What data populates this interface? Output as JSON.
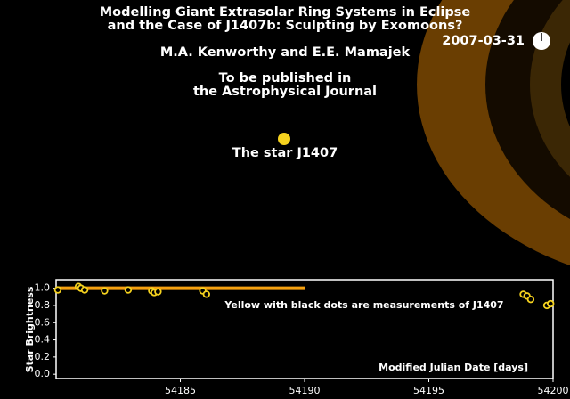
{
  "header": {
    "title": [
      "Modelling Giant Extrasolar Ring Systems in Eclipse",
      "and the Case of J1407b: Sculpting by Exomoons?"
    ],
    "authors": "M.A. Kenworthy and E.E.  Mamajek",
    "publication": [
      "To be published in",
      "the Astrophysical Journal"
    ],
    "date": "2007-03-31",
    "star_label": "The star J1407"
  },
  "chart_data": {
    "type": "scatter",
    "ylabel": "Star Brightness",
    "xlabel": "Modified Julian Date [days]",
    "annotation": "Yellow with black dots are measurements of J1407",
    "xlim": [
      54180,
      54200
    ],
    "xticks": [
      54185,
      54190,
      54195,
      54200
    ],
    "ylim": [
      -0.05,
      1.1
    ],
    "yticks": [
      {
        "value": 0,
        "label": "0.0"
      },
      0.2,
      0.4,
      0.6,
      0.8,
      {
        "value": 1,
        "label": "1.0"
      }
    ],
    "series": [
      {
        "type": "line",
        "color": "#f5a00f",
        "x": [
          54180,
          54190
        ],
        "values": [
          1.0,
          1.0
        ]
      },
      {
        "type": "scatter",
        "color": "#f5d21e",
        "x": [
          54180.07,
          54180.9,
          54181.0,
          54181.15,
          54181.95,
          54182.9,
          54183.85,
          54183.95,
          54184.1,
          54185.9,
          54186.05,
          54198.8,
          54198.95,
          54199.1,
          54199.75,
          54199.9
        ],
        "values": [
          0.98,
          1.02,
          1.0,
          0.98,
          0.97,
          0.98,
          0.97,
          0.95,
          0.96,
          0.97,
          0.93,
          0.93,
          0.91,
          0.87,
          0.8,
          0.82
        ]
      }
    ]
  }
}
